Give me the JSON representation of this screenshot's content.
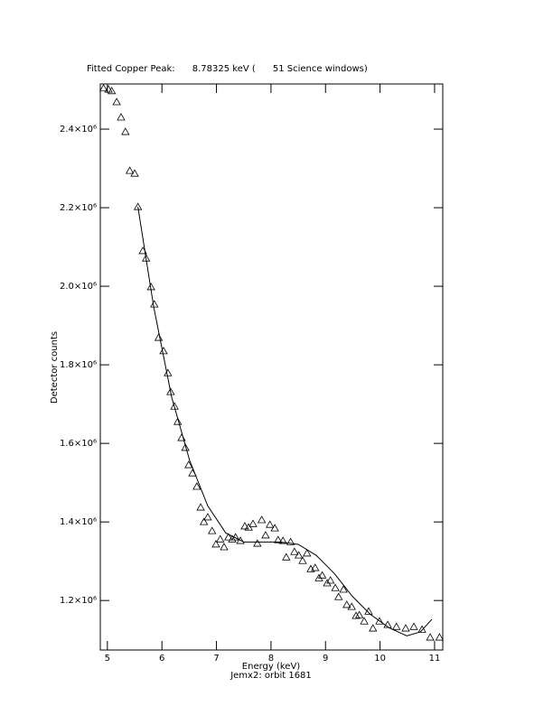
{
  "chart_data": {
    "type": "scatter",
    "title": "Fitted Copper Peak:      8.78325 keV (      51 Science windows)",
    "x_label": "Energy (keV)",
    "subtitle": "Jemx2: orbit 1681",
    "y_label": "Detector counts",
    "xlim": [
      4.87,
      11.15
    ],
    "ylim": [
      1074000,
      2515000
    ],
    "xticks": [
      5,
      6,
      7,
      8,
      9,
      10,
      11
    ],
    "yticks": [
      {
        "value": 1200000,
        "label": "1.2×10⁶"
      },
      {
        "value": 1400000,
        "label": "1.4×10⁶"
      },
      {
        "value": 1600000,
        "label": "1.6×10⁶"
      },
      {
        "value": 1800000,
        "label": "1.8×10⁶"
      },
      {
        "value": 2000000,
        "label": "2.0×10⁶"
      },
      {
        "value": 2200000,
        "label": "2.2×10⁶"
      },
      {
        "value": 2400000,
        "label": "2.4×10⁶"
      }
    ],
    "series": [
      {
        "marker": "triangle",
        "color": "#000000",
        "x": [
          4.93,
          5.02,
          5.08,
          5.17,
          5.25,
          5.33,
          5.41,
          5.5,
          5.56,
          5.65,
          5.71,
          5.8,
          5.86,
          5.94,
          6.03,
          6.11,
          6.16,
          6.23,
          6.29,
          6.36,
          6.43,
          6.49,
          6.56,
          6.64,
          6.71,
          6.77,
          6.84,
          6.92,
          6.99,
          7.07,
          7.14,
          7.22,
          7.29,
          7.35,
          7.44,
          7.52,
          7.59,
          7.67,
          7.75,
          7.83,
          7.9,
          7.98,
          8.07,
          8.13,
          8.22,
          8.28,
          8.36,
          8.43,
          8.51,
          8.58,
          8.66,
          8.73,
          8.81,
          8.88,
          8.94,
          9.03,
          9.09,
          9.18,
          9.24,
          9.33,
          9.39,
          9.48,
          9.56,
          9.62,
          9.71,
          9.79,
          9.87,
          9.99,
          10.14,
          10.3,
          10.47,
          10.62,
          10.77,
          10.92,
          11.09
        ],
        "values": [
          2504000,
          2501000,
          2497000,
          2469000,
          2430000,
          2393000,
          2294000,
          2287000,
          2202000,
          2090000,
          2071000,
          1998000,
          1954000,
          1869000,
          1835000,
          1779000,
          1731000,
          1694000,
          1655000,
          1614000,
          1589000,
          1545000,
          1524000,
          1490000,
          1437000,
          1400000,
          1412000,
          1377000,
          1343000,
          1356000,
          1336000,
          1361000,
          1356000,
          1361000,
          1352000,
          1389000,
          1386000,
          1395000,
          1345000,
          1405000,
          1366000,
          1393000,
          1384000,
          1354000,
          1352000,
          1310000,
          1349000,
          1324000,
          1315000,
          1301000,
          1320000,
          1280000,
          1283000,
          1257000,
          1264000,
          1244000,
          1251000,
          1232000,
          1209000,
          1228000,
          1189000,
          1184000,
          1161000,
          1163000,
          1147000,
          1172000,
          1129000,
          1147000,
          1138000,
          1133000,
          1129000,
          1133000,
          1126000,
          1106000,
          1106000
        ]
      },
      {
        "marker": "line",
        "color": "#000000",
        "x": [
          5.56,
          5.85,
          6.18,
          6.51,
          6.84,
          7.17,
          7.5,
          7.83,
          8.17,
          8.5,
          8.83,
          9.16,
          9.49,
          9.82,
          10.16,
          10.49,
          10.74,
          10.95
        ],
        "values": [
          2202000,
          1947000,
          1717000,
          1556000,
          1441000,
          1372000,
          1349000,
          1349000,
          1349000,
          1343000,
          1315000,
          1269000,
          1211000,
          1165000,
          1131000,
          1110000,
          1120000,
          1152000
        ]
      }
    ]
  }
}
